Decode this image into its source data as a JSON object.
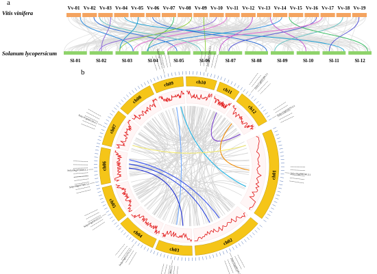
{
  "panel_a": {
    "label": "a",
    "top_species": "Vitis vinifera",
    "bottom_species": "Solanum lycopersicum",
    "top_chroms": [
      "Vv-01",
      "Vv-02",
      "Vv-03",
      "Vv-04",
      "Vv-05",
      "Vv-06",
      "Vv-07",
      "Vv-08",
      "Vv-09",
      "Vv-10",
      "Vv-11",
      "Vv-12",
      "Vv-13",
      "Vv-14",
      "Vv-15",
      "Vv-16",
      "Vv-17",
      "Vv-18",
      "Vv-19"
    ],
    "bottom_chroms": [
      "Sl-01",
      "Sl-02",
      "Sl-03",
      "Sl-04",
      "Sl-05",
      "Sl-06",
      "Sl-07",
      "Sl-08",
      "Sl-09",
      "Sl-10",
      "Sl-11",
      "Sl-12"
    ],
    "colors": {
      "top_bar": "#F4A460",
      "bottom_bar": "#8FD36B",
      "background_links": "#d9d9d9",
      "highlight_links": [
        "#8e6bd8",
        "#2f6fd6",
        "#1a9fd4",
        "#3fbf6a",
        "#8fcf3f",
        "#e06fd0",
        "#c45ad0",
        "#5b5bd6",
        "#2d8fe0",
        "#66c2c2"
      ]
    }
  },
  "panel_b": {
    "label": "b",
    "chromosomes": [
      "ch01",
      "ch02",
      "ch03",
      "ch04",
      "ch05",
      "ch06",
      "ch07",
      "ch08",
      "ch09",
      "ch10",
      "ch11",
      "ch12"
    ],
    "outer_gene_labels": [
      "Solyc01g096740.3.1",
      "Solyc12g055870.2.1",
      "Solyc11g005380.3.1",
      "Solyc07g042120.4.1",
      "Solyc06g072680.3.1",
      "Solyc08g007380.3.1",
      "Solyc05g050510.3.1",
      "Solyc04g051270.3.1",
      "Solyc03g113860.3.1",
      "Solyc02g081160.3.1",
      "Solyc09g011470.3.1",
      "Solyc10g047490.3.1"
    ],
    "colors": {
      "chrom_band": "#F5C518",
      "density_line": "#e01010",
      "ticks": "#4a6fb5",
      "background_links": "#d4d4d4",
      "highlight_links": [
        "#6fa8ff",
        "#1db5e8",
        "#7a3fd0",
        "#f08a00",
        "#f2e96a",
        "#1f2fd1",
        "#2540e0",
        "#3a55f0"
      ]
    }
  }
}
